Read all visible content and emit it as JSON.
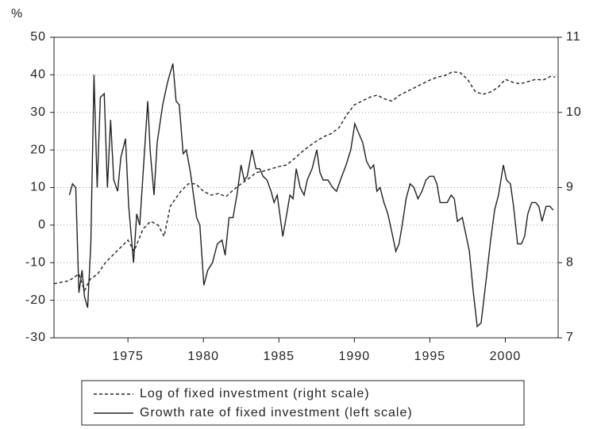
{
  "chart_data": {
    "type": "line",
    "y_label": "%",
    "xlim": [
      1970.1,
      2003.5
    ],
    "xticks": [
      1975,
      1980,
      1985,
      1990,
      1995,
      2000
    ],
    "ylim": [
      -30,
      50
    ],
    "yticks": [
      -30,
      -20,
      -10,
      0,
      10,
      20,
      30,
      40,
      50
    ],
    "y2lim": [
      7,
      11
    ],
    "y2ticks": [
      7,
      8,
      9,
      10,
      11
    ],
    "grid": true,
    "legend": "bottom",
    "series": [
      {
        "name": "Log of fixed investment (right scale)",
        "color": "#222222",
        "dash": true,
        "axis": "y2",
        "x": [
          1970.1,
          1971.1,
          1971.75,
          1972.12,
          1972.5,
          1973,
          1973.5,
          1974,
          1974.5,
          1975,
          1975.4,
          1976,
          1976.5,
          1977,
          1977.4,
          1977.8,
          1978.5,
          1979,
          1979.5,
          1980,
          1980.5,
          1981,
          1981.5,
          1982,
          1982.5,
          1983,
          1983.5,
          1984,
          1984.5,
          1985,
          1985.5,
          1986,
          1986.5,
          1987,
          1987.5,
          1988,
          1988.5,
          1989,
          1989.5,
          1990,
          1990.5,
          1991,
          1991.5,
          1992,
          1992.5,
          1993,
          1993.5,
          1994,
          1994.5,
          1995,
          1995.5,
          1996,
          1996.5,
          1997,
          1997.5,
          1998,
          1998.5,
          1999,
          1999.5,
          2000,
          2000.5,
          2001,
          2001.5,
          2002,
          2002.5,
          2003,
          2003.3
        ],
        "values": [
          7.72,
          7.76,
          7.85,
          7.63,
          7.78,
          7.85,
          8.0,
          8.1,
          8.2,
          8.3,
          8.15,
          8.45,
          8.55,
          8.5,
          8.35,
          8.75,
          8.95,
          9.05,
          9.05,
          8.95,
          8.9,
          8.92,
          8.88,
          8.97,
          9.05,
          9.12,
          9.2,
          9.22,
          9.25,
          9.28,
          9.3,
          9.38,
          9.47,
          9.55,
          9.62,
          9.68,
          9.72,
          9.8,
          9.97,
          10.1,
          10.15,
          10.2,
          10.23,
          10.18,
          10.15,
          10.23,
          10.28,
          10.33,
          10.38,
          10.43,
          10.47,
          10.49,
          10.54,
          10.53,
          10.44,
          10.28,
          10.24,
          10.27,
          10.33,
          10.44,
          10.4,
          10.38,
          10.41,
          10.44,
          10.43,
          10.48,
          10.47
        ]
      },
      {
        "name": "Growth rate of fixed investment (left scale)",
        "color": "#222222",
        "dash": false,
        "axis": "y",
        "x": [
          1971.12,
          1971.33,
          1971.54,
          1971.75,
          1971.96,
          1972.12,
          1972.33,
          1972.54,
          1972.75,
          1972.96,
          1973.17,
          1973.43,
          1973.64,
          1973.85,
          1974.06,
          1974.32,
          1974.53,
          1974.84,
          1975.05,
          1975.37,
          1975.58,
          1975.78,
          1975.99,
          1976.31,
          1976.47,
          1976.73,
          1976.94,
          1977.3,
          1977.62,
          1977.98,
          1978.19,
          1978.4,
          1978.66,
          1978.87,
          1979.14,
          1979.34,
          1979.55,
          1979.76,
          1980.03,
          1980.29,
          1980.6,
          1980.92,
          1981.23,
          1981.44,
          1981.7,
          1981.96,
          1982.22,
          1982.49,
          1982.7,
          1982.9,
          1983.22,
          1983.48,
          1983.74,
          1983.95,
          1984.21,
          1984.48,
          1984.68,
          1984.89,
          1985.26,
          1985.52,
          1985.73,
          1985.94,
          1986.15,
          1986.41,
          1986.67,
          1986.88,
          1987.2,
          1987.51,
          1987.72,
          1987.93,
          1988.25,
          1988.56,
          1988.82,
          1989.08,
          1989.45,
          1989.76,
          1990.03,
          1990.23,
          1990.55,
          1990.81,
          1991.07,
          1991.28,
          1991.49,
          1991.7,
          1991.96,
          1992.22,
          1992.49,
          1992.75,
          1992.96,
          1993.17,
          1993.43,
          1993.69,
          1993.95,
          1994.21,
          1994.48,
          1994.74,
          1995.0,
          1995.26,
          1995.47,
          1995.68,
          1995.89,
          1996.15,
          1996.41,
          1996.62,
          1996.83,
          1997.15,
          1997.36,
          1997.62,
          1997.88,
          1998.14,
          1998.4,
          1998.72,
          1999.03,
          1999.29,
          1999.55,
          1999.87,
          2000.08,
          2000.34,
          2000.55,
          2000.81,
          2001.07,
          2001.28,
          2001.49,
          2001.75,
          2002.01,
          2002.22,
          2002.43,
          2002.7,
          2002.96,
          2003.17
        ],
        "values": [
          8,
          11,
          10,
          -18,
          -12,
          -19,
          -22,
          -5,
          40,
          10,
          34,
          35,
          10,
          28,
          12,
          9,
          18,
          23,
          5,
          -10,
          3,
          0,
          13,
          33,
          20,
          8,
          22,
          32,
          38,
          43,
          33,
          32,
          19,
          20,
          14,
          8,
          2,
          0,
          -16,
          -12,
          -10,
          -5,
          -4,
          -8,
          2,
          2,
          8,
          16,
          12,
          13,
          20,
          15,
          15,
          13,
          12,
          9,
          6,
          8,
          -3,
          3,
          8,
          7,
          15,
          10,
          8,
          12,
          15,
          20,
          14,
          12,
          12,
          10,
          9,
          12,
          16,
          20,
          27,
          25,
          22,
          17,
          15,
          16,
          9,
          10,
          6,
          3,
          -2,
          -7,
          -5,
          0,
          7,
          11,
          10,
          7,
          9,
          12,
          13,
          13,
          11,
          6,
          6,
          6,
          8,
          7,
          1,
          2,
          -2,
          -7,
          -18,
          -27,
          -26,
          -15,
          -4,
          4,
          8,
          16,
          12,
          11,
          5,
          -5,
          -5,
          -3,
          3,
          6,
          6,
          5,
          1,
          5,
          5,
          4
        ]
      }
    ]
  }
}
